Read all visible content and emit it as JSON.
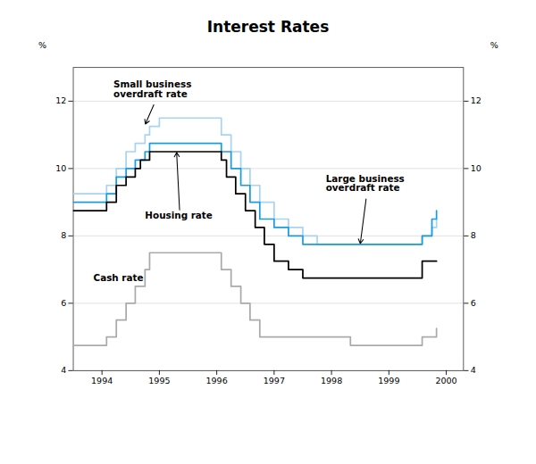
{
  "chart_data": {
    "type": "step",
    "title": "Interest Rates",
    "xlim": [
      1993.5,
      2000.3
    ],
    "xticks": [
      1994,
      1995,
      1996,
      1997,
      1998,
      1999,
      2000
    ],
    "ylim": [
      4,
      13
    ],
    "yticks": [
      4,
      6,
      8,
      10,
      12
    ],
    "ylabel": "%",
    "y2lim": [
      4,
      13
    ],
    "y2ticks": [
      4,
      6,
      8,
      10,
      12
    ],
    "y2label": "%",
    "grid": true,
    "series": [
      {
        "color": "#a8d4f0",
        "x": [
          1993.5,
          1993.83,
          1994.0,
          1994.08,
          1994.25,
          1994.42,
          1994.58,
          1994.75,
          1994.83,
          1995.0,
          1995.25,
          1995.5,
          1995.75,
          1996.0,
          1996.08,
          1996.25,
          1996.42,
          1996.58,
          1996.75,
          1997.0,
          1997.25,
          1997.5,
          1997.75,
          1998.0,
          1998.25,
          1998.5,
          1998.75,
          1999.0,
          1999.17,
          1999.42,
          1999.58,
          1999.75,
          1999.83
        ],
        "values": [
          9.25,
          9.25,
          9.25,
          9.5,
          10.0,
          10.5,
          10.75,
          11.0,
          11.25,
          11.5,
          11.5,
          11.5,
          11.5,
          11.5,
          11.0,
          10.5,
          10.0,
          9.5,
          9.0,
          8.5,
          8.25,
          8.0,
          7.75,
          7.75,
          7.75,
          7.75,
          7.75,
          7.75,
          7.75,
          7.75,
          8.0,
          8.25,
          8.5
        ]
      },
      {
        "color": "#1a9de0",
        "x": [
          1993.5,
          1993.83,
          1994.0,
          1994.08,
          1994.25,
          1994.42,
          1994.58,
          1994.75,
          1994.83,
          1995.0,
          1995.25,
          1995.5,
          1995.75,
          1996.0,
          1996.08,
          1996.25,
          1996.42,
          1996.58,
          1996.75,
          1997.0,
          1997.25,
          1997.5,
          1997.75,
          1998.0,
          1998.25,
          1998.5,
          1998.75,
          1999.0,
          1999.17,
          1999.42,
          1999.58,
          1999.75,
          1999.83
        ],
        "values": [
          9.0,
          9.0,
          9.0,
          9.25,
          9.75,
          10.0,
          10.25,
          10.5,
          10.75,
          10.75,
          10.75,
          10.75,
          10.75,
          10.75,
          10.5,
          10.0,
          9.5,
          9.0,
          8.5,
          8.25,
          8.0,
          7.75,
          7.75,
          7.75,
          7.75,
          7.75,
          7.75,
          7.75,
          7.75,
          7.75,
          8.0,
          8.5,
          8.75
        ]
      },
      {
        "color": "#aaaaaa",
        "x": [
          1993.5,
          1993.83,
          1994.0,
          1994.08,
          1994.25,
          1994.42,
          1994.58,
          1994.75,
          1994.83,
          1995.0,
          1995.5,
          1996.0,
          1996.08,
          1996.25,
          1996.42,
          1996.58,
          1996.75,
          1997.0,
          1997.5,
          1998.0,
          1998.33,
          1998.67,
          1999.0,
          1999.17,
          1999.42,
          1999.58,
          1999.75,
          1999.83
        ],
        "values": [
          4.75,
          4.75,
          4.75,
          5.0,
          5.5,
          6.0,
          6.5,
          7.0,
          7.5,
          7.5,
          7.5,
          7.5,
          7.0,
          6.5,
          6.0,
          5.5,
          5.0,
          5.0,
          5.0,
          5.0,
          4.75,
          4.75,
          4.75,
          4.75,
          4.75,
          5.0,
          5.0,
          5.25
        ]
      },
      {
        "color": "#000000",
        "x": [
          1993.5,
          1993.83,
          1994.0,
          1994.08,
          1994.25,
          1994.42,
          1994.58,
          1994.67,
          1994.83,
          1995.0,
          1995.25,
          1995.5,
          1995.75,
          1996.0,
          1996.08,
          1996.17,
          1996.33,
          1996.5,
          1996.67,
          1996.83,
          1997.0,
          1997.25,
          1997.5,
          1997.75,
          1998.0,
          1998.5,
          1999.0,
          1999.17,
          1999.42,
          1999.58,
          1999.83
        ],
        "values": [
          8.75,
          8.75,
          8.75,
          9.0,
          9.5,
          9.75,
          10.0,
          10.25,
          10.5,
          10.5,
          10.5,
          10.5,
          10.5,
          10.5,
          10.25,
          9.75,
          9.25,
          8.75,
          8.25,
          7.75,
          7.25,
          7.0,
          6.75,
          6.75,
          6.75,
          6.75,
          6.75,
          6.75,
          6.75,
          7.25,
          7.25
        ]
      }
    ],
    "annotations": [
      {
        "text": "Small business\noverdraft rate",
        "x": 1994.75,
        "y": 11.3,
        "text_x": 1994.2,
        "text_y": 12.6
      },
      {
        "text": "Housing rate",
        "x": 1995.3,
        "y": 10.5,
        "text_x": 1994.75,
        "text_y": 8.7
      },
      {
        "text": "Large business\noverdraft rate",
        "x": 1998.5,
        "y": 7.75,
        "text_x": 1997.9,
        "text_y": 9.8
      },
      {
        "text": "Cash rate",
        "text_x": 1993.85,
        "text_y": 6.85
      }
    ]
  }
}
